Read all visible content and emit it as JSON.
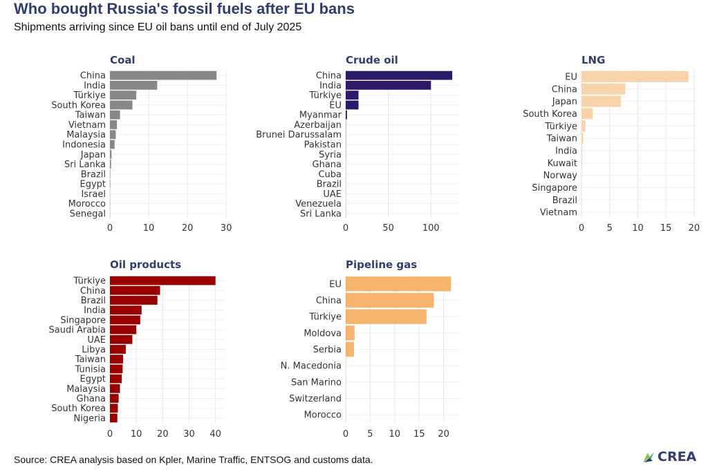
{
  "header": {
    "title": "Who bought Russia's fossil fuels after EU bans",
    "subtitle": "Shipments arriving since EU oil bans until end of July 2025"
  },
  "footer": {
    "source": "Source: CREA analysis based on Kpler, Marine Traffic, ENTSOG and customs data.",
    "logo_text": "CREA",
    "logo_colors": [
      "#2f3e6e",
      "#35a7a0",
      "#8cc63f"
    ]
  },
  "chart_data": [
    {
      "type": "bar",
      "orientation": "horizontal",
      "title": "Coal",
      "color": "#888888",
      "categories": [
        "China",
        "India",
        "Türkiye",
        "South Korea",
        "Taiwan",
        "Vietnam",
        "Malaysia",
        "Indonesia",
        "Japan",
        "Sri Lanka",
        "Brazil",
        "Egypt",
        "Israel",
        "Morocco",
        "Senegal"
      ],
      "values": [
        27.5,
        12.2,
        6.8,
        5.8,
        2.6,
        1.8,
        1.5,
        1.2,
        0.4,
        0.3,
        0.1,
        0.1,
        0.05,
        0.05,
        0.05
      ],
      "xticks": [
        0,
        10,
        20,
        30
      ],
      "xlim": [
        0,
        30.5
      ],
      "grid": true
    },
    {
      "type": "bar",
      "orientation": "horizontal",
      "title": "Crude oil",
      "color": "#2c1a6b",
      "categories": [
        "China",
        "India",
        "Türkiye",
        "EU",
        "Myanmar",
        "Azerbaijan",
        "Brunei Darussalam",
        "Pakistan",
        "Syria",
        "Ghana",
        "Cuba",
        "Brazil",
        "UAE",
        "Venezuela",
        "Sri Lanka"
      ],
      "values": [
        125,
        100,
        15,
        15,
        1.5,
        0.2,
        0.2,
        0.2,
        0.2,
        0.1,
        0.1,
        0.1,
        0.1,
        0.1,
        0.1
      ],
      "xticks": [
        0,
        50,
        100
      ],
      "xlim": [
        0,
        133
      ],
      "grid": true
    },
    {
      "type": "bar",
      "orientation": "horizontal",
      "title": "LNG",
      "color": "#f8d2a8",
      "categories": [
        "EU",
        "China",
        "Japan",
        "South Korea",
        "Türkiye",
        "Taiwan",
        "India",
        "Kuwait",
        "Norway",
        "Singapore",
        "Brazil",
        "Vietnam"
      ],
      "values": [
        19,
        7.8,
        7,
        2,
        0.7,
        0.3,
        0.1,
        0.1,
        0.05,
        0.05,
        0.05,
        0.05
      ],
      "xticks": [
        0,
        5,
        10,
        15,
        20
      ],
      "xlim": [
        0,
        20.5
      ],
      "grid": true
    },
    {
      "type": "bar",
      "orientation": "horizontal",
      "title": "Oil products",
      "color": "#9a0000",
      "categories": [
        "Türkiye",
        "China",
        "Brazil",
        "India",
        "Singapore",
        "Saudi Arabia",
        "UAE",
        "Libya",
        "Taiwan",
        "Tunisia",
        "Egypt",
        "Malaysia",
        "Ghana",
        "South Korea",
        "Nigeria"
      ],
      "values": [
        40,
        19,
        18,
        12,
        11.5,
        10,
        8.5,
        6,
        5,
        4.8,
        4.5,
        3.8,
        3.3,
        3,
        2.8
      ],
      "xticks": [
        0,
        10,
        20,
        30,
        40
      ],
      "xlim": [
        0,
        43.5
      ],
      "grid": true
    },
    {
      "type": "bar",
      "orientation": "horizontal",
      "title": "Pipeline gas",
      "color": "#f5b36b",
      "categories": [
        "EU",
        "China",
        "Türkiye",
        "Moldova",
        "Serbia",
        "N. Macedonia",
        "San Marino",
        "Switzerland",
        "Morocco"
      ],
      "values": [
        21.5,
        18,
        16.5,
        1.8,
        1.7,
        0.05,
        0.05,
        0.05,
        0.05
      ],
      "xticks": [
        0,
        5,
        10,
        15,
        20
      ],
      "xlim": [
        0,
        23.3
      ],
      "grid": true
    }
  ]
}
